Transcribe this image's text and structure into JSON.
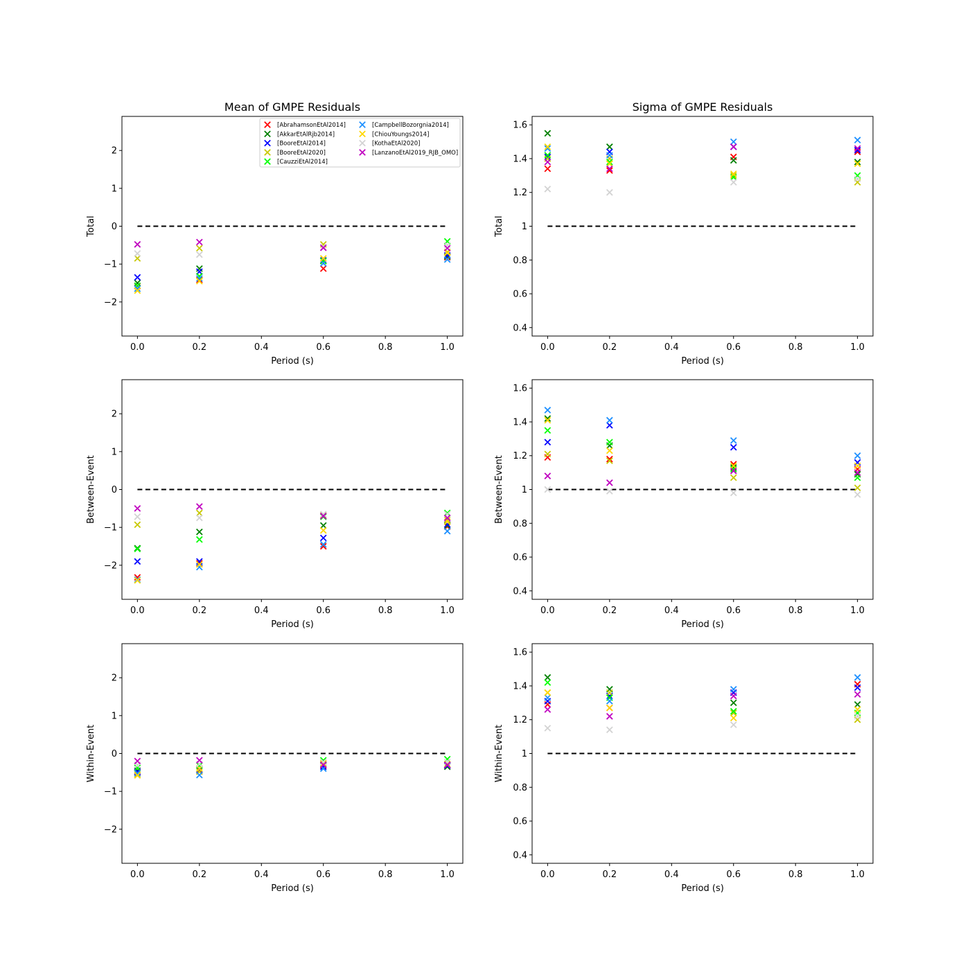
{
  "figure": {
    "col_titles": [
      "Mean of GMPE Residuals",
      "Sigma of GMPE Residuals"
    ],
    "row_labels": [
      "Total",
      "Between-Event",
      "Within-Event"
    ],
    "xlabel": "Period (s)"
  },
  "legend": {
    "entries": [
      {
        "label": "[AbrahamsonEtAl2014]",
        "color": "#ff0000"
      },
      {
        "label": "[AkkarEtAlRjb2014]",
        "color": "#008000"
      },
      {
        "label": "[BooreEtAl2014]",
        "color": "#0000ff"
      },
      {
        "label": "[BooreEtAl2020]",
        "color": "#c8c800"
      },
      {
        "label": "[CauzziEtAl2014]",
        "color": "#00ff00"
      },
      {
        "label": "[CampbellBozorgnia2014]",
        "color": "#1e90ff"
      },
      {
        "label": "[ChiouYoungs2014]",
        "color": "#ffd700"
      },
      {
        "label": "[KothaEtAl2020]",
        "color": "#d3d3d3"
      },
      {
        "label": "[LanzanoEtAl2019_RJB_OMO]",
        "color": "#c000c0"
      }
    ]
  },
  "chart_data": [
    {
      "type": "scatter",
      "title": "Mean of GMPE Residuals",
      "xlabel": "Period (s)",
      "ylabel": "Total",
      "xlim": [
        -0.05,
        1.05
      ],
      "ylim": [
        -2.9,
        2.9
      ],
      "xticks": [
        0.0,
        0.2,
        0.4,
        0.6,
        0.8,
        1.0
      ],
      "yticks": [
        -2,
        -1,
        0,
        1,
        2
      ],
      "reference_line": 0,
      "x": [
        0.0,
        0.2,
        0.6,
        1.0
      ],
      "series": [
        {
          "name": "[AbrahamsonEtAl2014]",
          "values": [
            -1.58,
            -1.42,
            -1.12,
            -0.82
          ]
        },
        {
          "name": "[AkkarEtAlRjb2014]",
          "values": [
            -1.5,
            -1.12,
            -0.92,
            -0.8
          ]
        },
        {
          "name": "[BooreEtAl2014]",
          "values": [
            -1.35,
            -1.2,
            -0.9,
            -0.77
          ]
        },
        {
          "name": "[BooreEtAl2020]",
          "values": [
            -0.85,
            -0.58,
            -0.48,
            -0.68
          ]
        },
        {
          "name": "[CauzziEtAl2014]",
          "values": [
            -1.57,
            -1.32,
            -0.92,
            -0.4
          ]
        },
        {
          "name": "[CampbellBozorgnia2014]",
          "values": [
            -1.65,
            -1.38,
            -0.98,
            -0.88
          ]
        },
        {
          "name": "[ChiouYoungs2014]",
          "values": [
            -1.7,
            -1.45,
            -0.85,
            -0.7
          ]
        },
        {
          "name": "[KothaEtAl2020]",
          "values": [
            -0.72,
            -0.75,
            -0.55,
            -0.5
          ]
        },
        {
          "name": "[LanzanoEtAl2019_RJB_OMO]",
          "values": [
            -0.48,
            -0.42,
            -0.57,
            -0.58
          ]
        }
      ]
    },
    {
      "type": "scatter",
      "title": "Sigma of GMPE Residuals",
      "xlabel": "Period (s)",
      "ylabel": "Total",
      "xlim": [
        -0.05,
        1.05
      ],
      "ylim": [
        0.35,
        1.65
      ],
      "xticks": [
        0.0,
        0.2,
        0.4,
        0.6,
        0.8,
        1.0
      ],
      "yticks": [
        0.4,
        0.6,
        0.8,
        1.0,
        1.2,
        1.4,
        1.6
      ],
      "reference_line": 1.0,
      "x": [
        0.0,
        0.2,
        0.6,
        1.0
      ],
      "series": [
        {
          "name": "[AbrahamsonEtAl2014]",
          "values": [
            1.34,
            1.33,
            1.41,
            1.44
          ]
        },
        {
          "name": "[AkkarEtAlRjb2014]",
          "values": [
            1.55,
            1.47,
            1.39,
            1.38
          ]
        },
        {
          "name": "[BooreEtAl2014]",
          "values": [
            1.41,
            1.44,
            1.47,
            1.45
          ]
        },
        {
          "name": "[BooreEtAl2020]",
          "values": [
            1.4,
            1.4,
            1.3,
            1.26
          ]
        },
        {
          "name": "[CauzziEtAl2014]",
          "values": [
            1.42,
            1.38,
            1.29,
            1.3
          ]
        },
        {
          "name": "[CampbellBozorgnia2014]",
          "values": [
            1.46,
            1.42,
            1.5,
            1.51
          ]
        },
        {
          "name": "[ChiouYoungs2014]",
          "values": [
            1.47,
            1.37,
            1.31,
            1.37
          ]
        },
        {
          "name": "[KothaEtAl2020]",
          "values": [
            1.22,
            1.2,
            1.26,
            1.28
          ]
        },
        {
          "name": "[LanzanoEtAl2019_RJB_OMO]",
          "values": [
            1.38,
            1.34,
            1.47,
            1.46
          ]
        }
      ]
    },
    {
      "type": "scatter",
      "xlabel": "Period (s)",
      "ylabel": "Between-Event",
      "xlim": [
        -0.05,
        1.05
      ],
      "ylim": [
        -2.9,
        2.9
      ],
      "xticks": [
        0.0,
        0.2,
        0.4,
        0.6,
        0.8,
        1.0
      ],
      "yticks": [
        -2,
        -1,
        0,
        1,
        2
      ],
      "reference_line": 0,
      "x": [
        0.0,
        0.2,
        0.6,
        1.0
      ],
      "series": [
        {
          "name": "[AbrahamsonEtAl2014]",
          "values": [
            -2.32,
            -1.95,
            -1.5,
            -0.98
          ]
        },
        {
          "name": "[AkkarEtAlRjb2014]",
          "values": [
            -1.55,
            -1.12,
            -0.95,
            -0.95
          ]
        },
        {
          "name": "[BooreEtAl2014]",
          "values": [
            -1.9,
            -1.9,
            -1.28,
            -0.92
          ]
        },
        {
          "name": "[BooreEtAl2020]",
          "values": [
            -0.93,
            -0.62,
            -0.68,
            -0.8
          ]
        },
        {
          "name": "[CauzziEtAl2014]",
          "values": [
            -1.57,
            -1.32,
            -0.72,
            -0.62
          ]
        },
        {
          "name": "[CampbellBozorgnia2014]",
          "values": [
            -2.38,
            -2.05,
            -1.45,
            -1.1
          ]
        },
        {
          "name": "[ChiouYoungs2014]",
          "values": [
            -2.4,
            -1.98,
            -1.08,
            -0.85
          ]
        },
        {
          "name": "[KothaEtAl2020]",
          "values": [
            -0.72,
            -0.75,
            -0.65,
            -0.65
          ]
        },
        {
          "name": "[LanzanoEtAl2019_RJB_OMO]",
          "values": [
            -0.5,
            -0.45,
            -0.7,
            -0.75
          ]
        }
      ]
    },
    {
      "type": "scatter",
      "xlabel": "Period (s)",
      "ylabel": "Between-Event",
      "xlim": [
        -0.05,
        1.05
      ],
      "ylim": [
        0.35,
        1.65
      ],
      "xticks": [
        0.0,
        0.2,
        0.4,
        0.6,
        0.8,
        1.0
      ],
      "yticks": [
        0.4,
        0.6,
        0.8,
        1.0,
        1.2,
        1.4,
        1.6
      ],
      "reference_line": 1.0,
      "x": [
        0.0,
        0.2,
        0.6,
        1.0
      ],
      "series": [
        {
          "name": "[AbrahamsonEtAl2014]",
          "values": [
            1.19,
            1.18,
            1.15,
            1.12
          ]
        },
        {
          "name": "[AkkarEtAlRjb2014]",
          "values": [
            1.42,
            1.26,
            1.13,
            1.09
          ]
        },
        {
          "name": "[BooreEtAl2014]",
          "values": [
            1.28,
            1.38,
            1.25,
            1.16
          ]
        },
        {
          "name": "[BooreEtAl2020]",
          "values": [
            1.21,
            1.17,
            1.07,
            1.01
          ]
        },
        {
          "name": "[CauzziEtAl2014]",
          "values": [
            1.35,
            1.28,
            1.12,
            1.07
          ]
        },
        {
          "name": "[CampbellBozorgnia2014]",
          "values": [
            1.47,
            1.41,
            1.29,
            1.2
          ]
        },
        {
          "name": "[ChiouYoungs2014]",
          "values": [
            1.41,
            1.23,
            1.14,
            1.14
          ]
        },
        {
          "name": "[KothaEtAl2020]",
          "values": [
            1.0,
            0.99,
            0.98,
            0.97
          ]
        },
        {
          "name": "[LanzanoEtAl2019_RJB_OMO]",
          "values": [
            1.08,
            1.04,
            1.11,
            1.1
          ]
        }
      ]
    },
    {
      "type": "scatter",
      "xlabel": "Period (s)",
      "ylabel": "Within-Event",
      "xlim": [
        -0.05,
        1.05
      ],
      "ylim": [
        -2.9,
        2.9
      ],
      "xticks": [
        0.0,
        0.2,
        0.4,
        0.6,
        0.8,
        1.0
      ],
      "yticks": [
        -2,
        -1,
        0,
        1,
        2
      ],
      "reference_line": 0,
      "x": [
        0.0,
        0.2,
        0.6,
        1.0
      ],
      "series": [
        {
          "name": "[AbrahamsonEtAl2014]",
          "values": [
            -0.5,
            -0.45,
            -0.32,
            -0.32
          ]
        },
        {
          "name": "[AkkarEtAlRjb2014]",
          "values": [
            -0.45,
            -0.4,
            -0.28,
            -0.35
          ]
        },
        {
          "name": "[BooreEtAl2014]",
          "values": [
            -0.48,
            -0.42,
            -0.35,
            -0.32
          ]
        },
        {
          "name": "[BooreEtAl2020]",
          "values": [
            -0.55,
            -0.48,
            -0.28,
            -0.3
          ]
        },
        {
          "name": "[CauzziEtAl2014]",
          "values": [
            -0.38,
            -0.32,
            -0.18,
            -0.15
          ]
        },
        {
          "name": "[CampbellBozorgnia2014]",
          "values": [
            -0.52,
            -0.57,
            -0.4,
            -0.3
          ]
        },
        {
          "name": "[ChiouYoungs2014]",
          "values": [
            -0.58,
            -0.4,
            -0.25,
            -0.28
          ]
        },
        {
          "name": "[KothaEtAl2020]",
          "values": [
            -0.3,
            -0.28,
            -0.22,
            -0.22
          ]
        },
        {
          "name": "[LanzanoEtAl2019_RJB_OMO]",
          "values": [
            -0.2,
            -0.18,
            -0.3,
            -0.3
          ]
        }
      ]
    },
    {
      "type": "scatter",
      "xlabel": "Period (s)",
      "ylabel": "Within-Event",
      "xlim": [
        -0.05,
        1.05
      ],
      "ylim": [
        0.35,
        1.65
      ],
      "xticks": [
        0.0,
        0.2,
        0.4,
        0.6,
        0.8,
        1.0
      ],
      "yticks": [
        0.4,
        0.6,
        0.8,
        1.0,
        1.2,
        1.4,
        1.6
      ],
      "reference_line": 1.0,
      "x": [
        0.0,
        0.2,
        0.6,
        1.0
      ],
      "series": [
        {
          "name": "[AbrahamsonEtAl2014]",
          "values": [
            1.29,
            1.27,
            1.36,
            1.41
          ]
        },
        {
          "name": "[AkkarEtAlRjb2014]",
          "values": [
            1.45,
            1.38,
            1.3,
            1.29
          ]
        },
        {
          "name": "[BooreEtAl2014]",
          "values": [
            1.31,
            1.34,
            1.36,
            1.39
          ]
        },
        {
          "name": "[BooreEtAl2020]",
          "values": [
            1.36,
            1.36,
            1.24,
            1.2
          ]
        },
        {
          "name": "[CauzziEtAl2014]",
          "values": [
            1.42,
            1.33,
            1.25,
            1.24
          ]
        },
        {
          "name": "[CampbellBozorgnia2014]",
          "values": [
            1.33,
            1.31,
            1.38,
            1.45
          ]
        },
        {
          "name": "[ChiouYoungs2014]",
          "values": [
            1.36,
            1.27,
            1.21,
            1.26
          ]
        },
        {
          "name": "[KothaEtAl2020]",
          "values": [
            1.15,
            1.14,
            1.17,
            1.22
          ]
        },
        {
          "name": "[LanzanoEtAl2019_RJB_OMO]",
          "values": [
            1.26,
            1.22,
            1.34,
            1.35
          ]
        }
      ]
    }
  ]
}
